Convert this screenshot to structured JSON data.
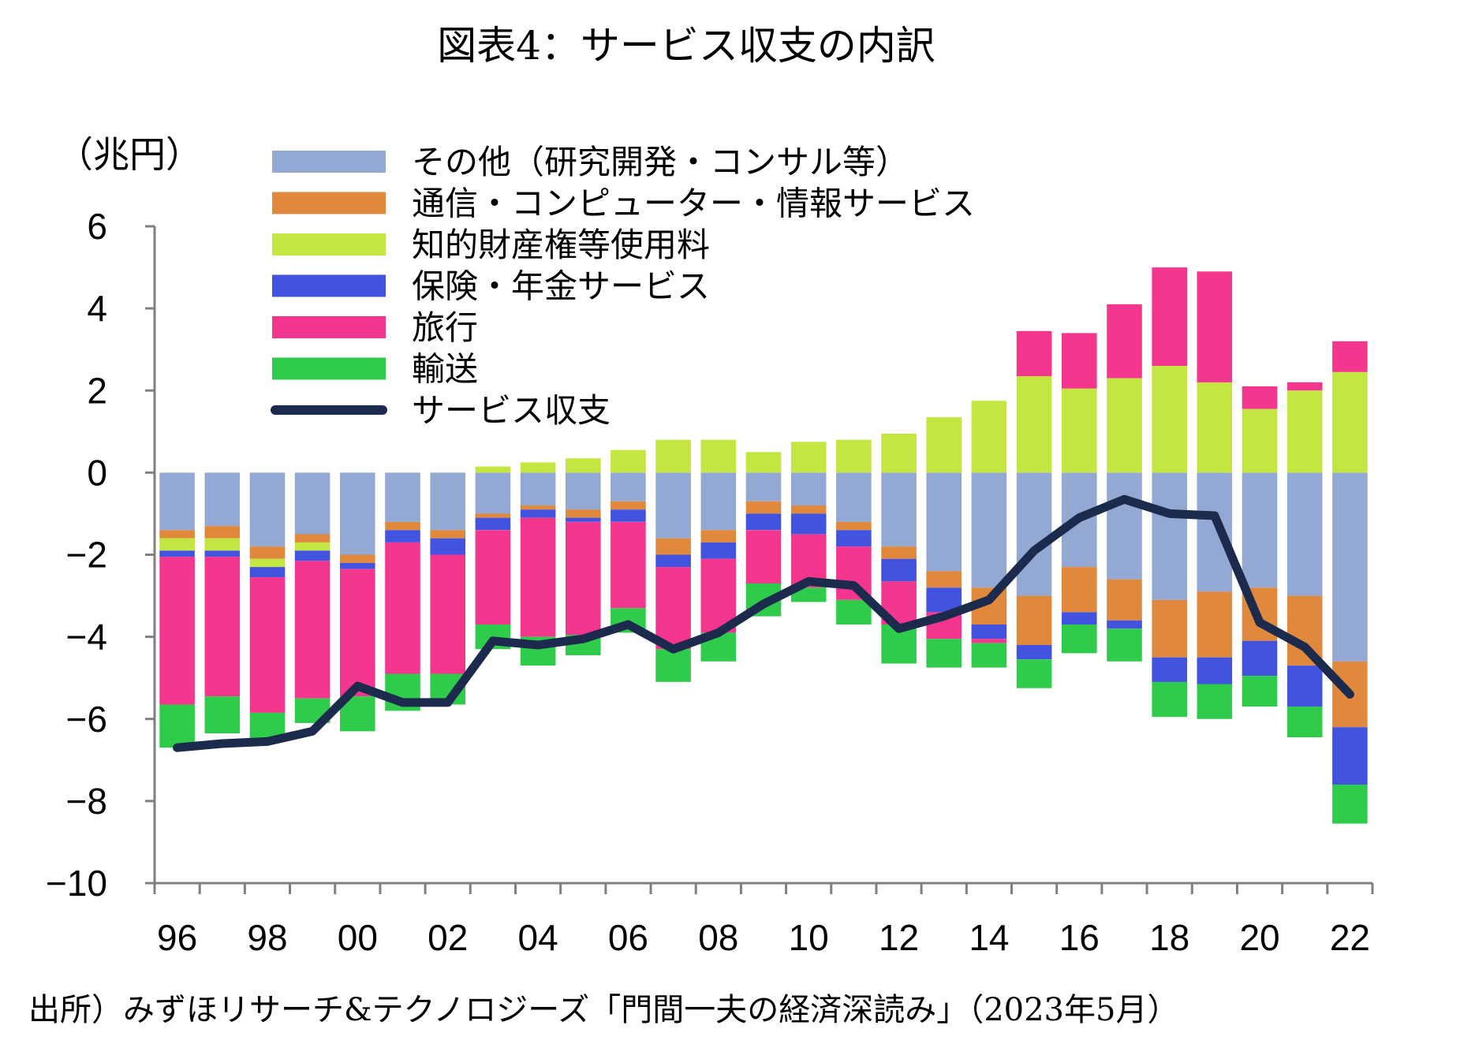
{
  "title": "図表4：サービス収支の内訳",
  "source": "出所）みずほリサーチ&テクノロジーズ「門間一夫の経済深読み」（2023年5月）",
  "chart_data": {
    "type": "bar",
    "stacked": true,
    "unit_label": "（兆円）",
    "ylim": [
      -10,
      6
    ],
    "yticks": [
      "6",
      "4",
      "2",
      "0",
      "−2",
      "−4",
      "−6",
      "−8",
      "−10"
    ],
    "ytick_values": [
      6,
      4,
      2,
      0,
      -2,
      -4,
      -6,
      -8,
      -10
    ],
    "categories": [
      "96",
      "97",
      "98",
      "99",
      "00",
      "01",
      "02",
      "03",
      "04",
      "05",
      "06",
      "07",
      "08",
      "09",
      "10",
      "11",
      "12",
      "13",
      "14",
      "15",
      "16",
      "17",
      "18",
      "19",
      "20",
      "21",
      "22"
    ],
    "xtick_labels": [
      "96",
      "",
      "98",
      "",
      "00",
      "",
      "02",
      "",
      "04",
      "",
      "06",
      "",
      "08",
      "",
      "10",
      "",
      "12",
      "",
      "14",
      "",
      "16",
      "",
      "18",
      "",
      "20",
      "",
      "22"
    ],
    "legend_position": "top",
    "series": [
      {
        "name": "その他（研究開発・コンサル等）",
        "color": "#93a9d4",
        "kind": "bar",
        "values": [
          -1.4,
          -1.3,
          -1.8,
          -1.5,
          -2.0,
          -1.2,
          -1.4,
          -1.0,
          -0.8,
          -0.9,
          -0.7,
          -1.6,
          -1.4,
          -0.7,
          -0.8,
          -1.2,
          -1.8,
          -2.4,
          -2.8,
          -3.0,
          -2.3,
          -2.6,
          -3.1,
          -2.9,
          -2.8,
          -3.0,
          -4.6
        ]
      },
      {
        "name": "通信・コンピューター・情報サービス",
        "color": "#e0883c",
        "kind": "bar",
        "values": [
          -0.2,
          -0.3,
          -0.3,
          -0.2,
          -0.2,
          -0.2,
          -0.2,
          -0.1,
          -0.1,
          -0.2,
          -0.2,
          -0.4,
          -0.3,
          -0.3,
          -0.2,
          -0.2,
          -0.3,
          -0.4,
          -0.9,
          -1.2,
          -1.1,
          -1.0,
          -1.4,
          -1.6,
          -1.3,
          -1.7,
          -1.6
        ]
      },
      {
        "name": "知的財産権等使用料",
        "color": "#c4e640",
        "kind": "bar",
        "values": [
          -0.3,
          -0.3,
          -0.2,
          -0.2,
          0.0,
          0.0,
          0.0,
          0.15,
          0.25,
          0.35,
          0.55,
          0.8,
          0.8,
          0.5,
          0.75,
          0.8,
          0.95,
          1.35,
          1.75,
          2.35,
          2.05,
          2.3,
          2.6,
          2.2,
          1.55,
          2.0,
          2.45
        ]
      },
      {
        "name": "保険・年金サービス",
        "color": "#4253e0",
        "kind": "bar",
        "values": [
          -0.15,
          -0.15,
          -0.25,
          -0.25,
          -0.15,
          -0.3,
          -0.4,
          -0.3,
          -0.2,
          -0.1,
          -0.3,
          -0.3,
          -0.4,
          -0.4,
          -0.5,
          -0.4,
          -0.55,
          -0.6,
          -0.35,
          -0.35,
          -0.3,
          -0.2,
          -0.6,
          -0.65,
          -0.85,
          -1.0,
          -1.4
        ]
      },
      {
        "name": "旅行",
        "color": "#f5368f",
        "kind": "bar",
        "values": [
          -3.6,
          -3.4,
          -3.3,
          -3.35,
          -3.1,
          -3.2,
          -2.9,
          -2.3,
          -2.9,
          -2.75,
          -2.1,
          -2.0,
          -1.8,
          -1.3,
          -1.3,
          -1.3,
          -1.05,
          -0.65,
          -0.1,
          1.1,
          1.35,
          1.8,
          2.4,
          2.7,
          0.55,
          0.2,
          0.75
        ]
      },
      {
        "name": "輸送",
        "color": "#2fcc4c",
        "kind": "bar",
        "values": [
          -1.05,
          -0.9,
          -0.7,
          -0.6,
          -0.85,
          -0.9,
          -0.75,
          -0.6,
          -0.7,
          -0.5,
          -0.6,
          -0.8,
          -0.7,
          -0.8,
          -0.35,
          -0.6,
          -0.95,
          -0.7,
          -0.6,
          -0.7,
          -0.7,
          -0.8,
          -0.85,
          -0.85,
          -0.75,
          -0.75,
          -0.95
        ]
      },
      {
        "name": "サービス収支",
        "color": "#1c2b4d",
        "kind": "line",
        "values": [
          -6.7,
          -6.6,
          -6.55,
          -6.3,
          -5.2,
          -5.6,
          -5.6,
          -4.1,
          -4.2,
          -4.05,
          -3.7,
          -4.3,
          -3.9,
          -3.2,
          -2.65,
          -2.75,
          -3.8,
          -3.5,
          -3.1,
          -1.9,
          -1.1,
          -0.65,
          -1.0,
          -1.05,
          -3.65,
          -4.25,
          -5.4
        ]
      }
    ]
  }
}
